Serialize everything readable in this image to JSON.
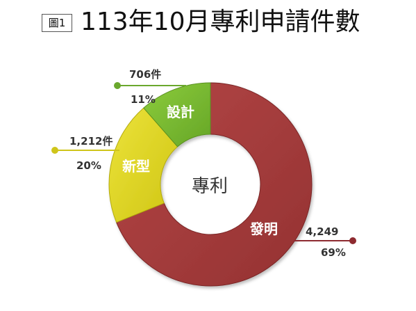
{
  "figure": {
    "badge": "圖1",
    "title": "113年10月專利申請件數"
  },
  "chart_data": {
    "type": "donut",
    "center_label": "專利",
    "slices": [
      {
        "name": "發明",
        "count_label": "4,249",
        "value": 4249,
        "percent_label": "69%",
        "color": "#a63a3a",
        "dot_color": "#8e2a30"
      },
      {
        "name": "新型",
        "count_label": "1,212件",
        "value": 1212,
        "percent_label": "20%",
        "color": "#e0d81d",
        "dot_color": "#cfc51a"
      },
      {
        "name": "設計",
        "count_label": "706件",
        "value": 706,
        "percent_label": "11%",
        "color": "#77b72e",
        "dot_color": "#6aa82d"
      }
    ]
  }
}
